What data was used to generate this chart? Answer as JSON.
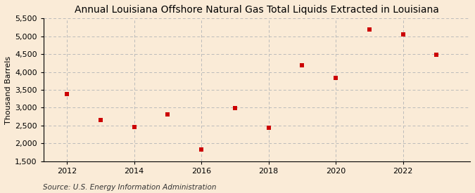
{
  "title": "Annual Louisiana Offshore Natural Gas Total Liquids Extracted in Louisiana",
  "ylabel": "Thousand Barrels",
  "source": "Source: U.S. Energy Information Administration",
  "years": [
    2012,
    2013,
    2014,
    2015,
    2016,
    2017,
    2018,
    2019,
    2020,
    2021,
    2022,
    2023
  ],
  "values": [
    3380,
    2650,
    2460,
    2820,
    1820,
    2980,
    2430,
    4180,
    3840,
    5200,
    5060,
    4480
  ],
  "marker_color": "#cc0000",
  "marker": "s",
  "marker_size": 4.5,
  "ylim": [
    1500,
    5500
  ],
  "yticks": [
    1500,
    2000,
    2500,
    3000,
    3500,
    4000,
    4500,
    5000,
    5500
  ],
  "xlim": [
    2011.3,
    2024.0
  ],
  "xticks": [
    2012,
    2014,
    2016,
    2018,
    2020,
    2022
  ],
  "bg_color": "#faebd7",
  "grid_color": "#bbbbbb",
  "title_fontsize": 10,
  "title_fontweight": "normal",
  "label_fontsize": 8,
  "tick_fontsize": 8,
  "source_fontsize": 7.5
}
